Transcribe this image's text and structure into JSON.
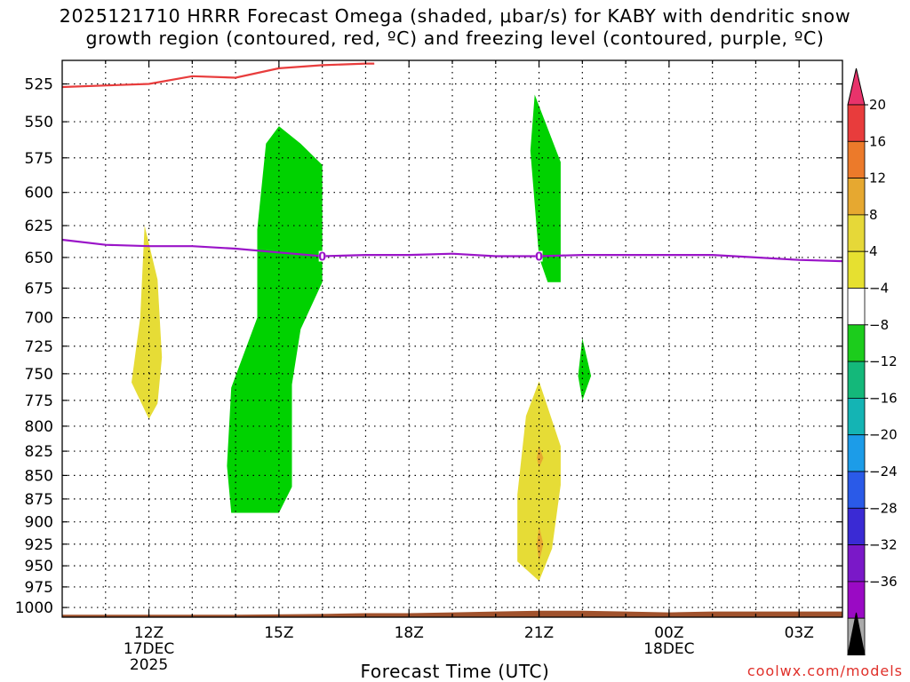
{
  "chart_data": {
    "type": "heatmap",
    "title_lines": [
      "2025121710 HRRR Forecast Omega (shaded, μbar/s) for KABY with dendritic snow",
      "growth region (contoured, red, ºC) and freezing level (contoured, purple, ºC)"
    ],
    "xlabel": "Forecast Time (UTC)",
    "credit": "coolwx.com/models",
    "x_ticks": [
      {
        "hour": 12,
        "lines": [
          "12Z",
          "17DEC",
          "2025"
        ]
      },
      {
        "hour": 15,
        "lines": [
          "15Z"
        ]
      },
      {
        "hour": 18,
        "lines": [
          "18Z"
        ]
      },
      {
        "hour": 21,
        "lines": [
          "21Z"
        ]
      },
      {
        "hour": 24,
        "lines": [
          "00Z",
          "18DEC"
        ]
      },
      {
        "hour": 27,
        "lines": [
          "03Z"
        ]
      }
    ],
    "xlim": [
      10,
      28
    ],
    "y_ticks": [
      525,
      550,
      575,
      600,
      625,
      650,
      675,
      700,
      725,
      750,
      775,
      800,
      825,
      850,
      875,
      900,
      925,
      950,
      975,
      1000
    ],
    "ylim": [
      510,
      1012
    ],
    "y_scale": "log-pressure",
    "colorbar": {
      "levels": [
        "20",
        "16",
        "12",
        "8",
        "4",
        "−4",
        "−8",
        "−12",
        "−16",
        "−20",
        "−24",
        "−28",
        "−32",
        "−36"
      ],
      "colors": [
        "#e8336b",
        "#e83c3c",
        "#ec7a2a",
        "#e6a830",
        "#e6d838",
        "#e6e030",
        "#ffffff",
        "#1ccc1c",
        "#14b87a",
        "#14b4b4",
        "#1c9ce8",
        "#2a5ae8",
        "#3a2ad4",
        "#7a18c8",
        "#9a0ac4",
        "#aaaaaa",
        "#000000"
      ]
    },
    "omega_regions": [
      {
        "color": "#e6dc36",
        "points": [
          [
            11.9,
            625
          ],
          [
            12.2,
            668
          ],
          [
            12.3,
            735
          ],
          [
            12.2,
            778
          ],
          [
            12.0,
            793
          ],
          [
            11.6,
            758
          ],
          [
            11.8,
            700
          ]
        ]
      },
      {
        "color": "#00d200",
        "points": [
          [
            15.0,
            553
          ],
          [
            15.5,
            565
          ],
          [
            16.0,
            580
          ],
          [
            16.0,
            670
          ],
          [
            15.5,
            710
          ],
          [
            15.3,
            760
          ],
          [
            15.3,
            862
          ],
          [
            15.0,
            890
          ],
          [
            13.9,
            890
          ],
          [
            13.8,
            840
          ],
          [
            13.9,
            763
          ],
          [
            14.5,
            700
          ],
          [
            14.5,
            628
          ],
          [
            14.7,
            565
          ]
        ]
      },
      {
        "color": "#00d200",
        "points": [
          [
            20.9,
            532
          ],
          [
            21.5,
            578
          ],
          [
            21.5,
            670
          ],
          [
            21.2,
            670
          ],
          [
            21.0,
            650
          ],
          [
            20.8,
            570
          ]
        ]
      },
      {
        "color": "#00d200",
        "points": [
          [
            22.0,
            718
          ],
          [
            22.2,
            752
          ],
          [
            22.0,
            775
          ],
          [
            21.9,
            752
          ]
        ]
      },
      {
        "color": "#e6dc36",
        "points": [
          [
            21.0,
            757
          ],
          [
            21.5,
            820
          ],
          [
            21.5,
            860
          ],
          [
            21.3,
            930
          ],
          [
            21.0,
            968
          ],
          [
            20.5,
            945
          ],
          [
            20.5,
            870
          ],
          [
            20.7,
            790
          ]
        ]
      },
      {
        "color": "#e6a830",
        "points": [
          [
            21.0,
            820
          ],
          [
            21.1,
            832
          ],
          [
            21.0,
            842
          ],
          [
            20.95,
            832
          ]
        ]
      },
      {
        "color": "#e6a830",
        "points": [
          [
            21.0,
            905
          ],
          [
            21.1,
            925
          ],
          [
            21.0,
            945
          ],
          [
            20.95,
            925
          ]
        ]
      }
    ],
    "snow_growth_line": {
      "color": "#e83c3c",
      "points": [
        [
          10,
          527
        ],
        [
          12,
          525
        ],
        [
          13,
          520
        ],
        [
          14,
          521
        ],
        [
          15,
          515
        ],
        [
          16,
          513
        ],
        [
          17,
          512
        ],
        [
          17.2,
          512
        ]
      ]
    },
    "freezing_level_line": {
      "color": "#9a14c8",
      "label": "0",
      "label_hours": [
        16,
        21
      ],
      "points": [
        [
          10,
          636
        ],
        [
          11,
          640
        ],
        [
          12,
          641
        ],
        [
          13,
          641
        ],
        [
          14,
          643
        ],
        [
          15,
          646
        ],
        [
          16,
          649
        ],
        [
          17,
          648
        ],
        [
          18,
          648
        ],
        [
          19,
          647
        ],
        [
          20,
          649
        ],
        [
          21,
          649
        ],
        [
          22,
          648
        ],
        [
          23,
          648
        ],
        [
          24,
          648
        ],
        [
          25,
          648
        ],
        [
          26,
          650
        ],
        [
          27,
          652
        ],
        [
          28,
          653
        ]
      ]
    },
    "terrain": {
      "color": "#a0522d",
      "points": [
        [
          10,
          1009
        ],
        [
          14,
          1009
        ],
        [
          16,
          1008
        ],
        [
          17,
          1007
        ],
        [
          18,
          1007
        ],
        [
          19,
          1006
        ],
        [
          20,
          1005
        ],
        [
          21,
          1004
        ],
        [
          22,
          1004
        ],
        [
          23,
          1005
        ],
        [
          24,
          1006
        ],
        [
          25,
          1005
        ],
        [
          26,
          1005
        ],
        [
          27,
          1005
        ],
        [
          28,
          1005
        ]
      ]
    }
  }
}
